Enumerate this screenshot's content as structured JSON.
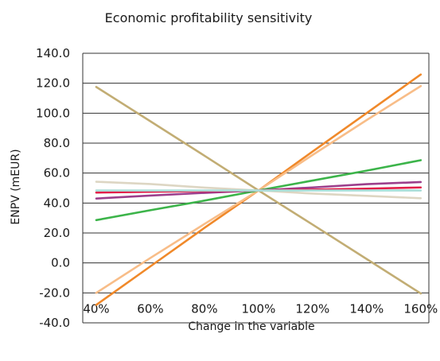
{
  "chart_data": {
    "type": "line",
    "title": "Economic profitability sensitivity",
    "xlabel": "Change in the variable",
    "ylabel": "ENPV (mEUR)",
    "ylim": [
      -40,
      140
    ],
    "yticks": [
      "140.0",
      "120.0",
      "100.0",
      "80.0",
      "60.0",
      "40.0",
      "20.0",
      "0.0",
      "-20.0",
      "-40.0"
    ],
    "xticks": [
      "40%",
      "60%",
      "80%",
      "100%",
      "120%",
      "140%",
      "160%"
    ],
    "x": [
      40,
      60,
      80,
      100,
      120,
      140,
      160
    ],
    "grid": "horizontal",
    "series": [
      {
        "color": "#c2ad74",
        "values": [
          117.5,
          94.6,
          71.6,
          48.4,
          25.6,
          2.6,
          -20.4
        ]
      },
      {
        "color": "#f0892a",
        "values": [
          -28.0,
          -2.3,
          23.4,
          48.4,
          74.4,
          100.1,
          125.8
        ]
      },
      {
        "color": "#f8bd88",
        "values": [
          -20.0,
          3.3,
          26.0,
          48.4,
          72.1,
          95.4,
          118.1
        ]
      },
      {
        "color": "#3cb44a",
        "values": [
          28.6,
          35.2,
          41.6,
          48.4,
          55.0,
          61.6,
          68.6
        ]
      },
      {
        "color": "#9c3f8c",
        "values": [
          43.0,
          45.0,
          46.8,
          48.4,
          50.4,
          52.6,
          54.0
        ]
      },
      {
        "color": "#e21e4a",
        "values": [
          47.0,
          47.5,
          48.0,
          48.4,
          49.0,
          49.6,
          50.4
        ]
      },
      {
        "color": "#ddd6c3",
        "values": [
          54.2,
          52.7,
          50.3,
          48.4,
          46.3,
          44.8,
          43.2
        ]
      },
      {
        "color": "#a9dfd9",
        "values": [
          48.4,
          48.4,
          48.4,
          48.4,
          48.4,
          48.4,
          48.4
        ]
      }
    ]
  }
}
